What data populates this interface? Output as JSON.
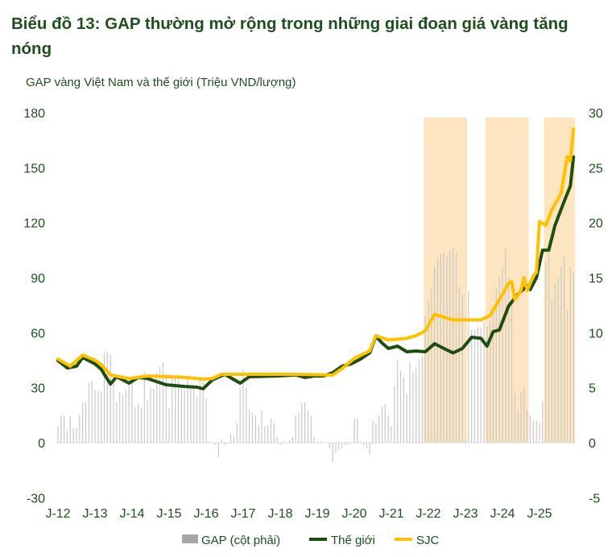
{
  "chart_data": {
    "type": "bar+line",
    "title": "Biểu đồ 13: GAP thường mở rộng trong những giai đoạn giá vàng tăng nóng",
    "ylabel": "GAP vàng Việt Nam và thế giới (Triệu VND/lượng)",
    "ylim_left": [
      -30,
      180
    ],
    "ylim_right": [
      -5,
      30
    ],
    "yticks_left": [
      "180",
      "150",
      "120",
      "90",
      "60",
      "30",
      "0",
      "-30"
    ],
    "yticks_right": [
      "30",
      "25",
      "20",
      "15",
      "10",
      "5",
      "0",
      "-5"
    ],
    "xticks": [
      "J-12",
      "J-13",
      "J-14",
      "J-15",
      "J-16",
      "J-17",
      "J-18",
      "J-19",
      "J-20",
      "J-21",
      "J-22",
      "J-23",
      "J-24",
      "J-25"
    ],
    "grid": false,
    "legend_position": "bottom",
    "highlight_periods": [
      [
        "2021-12",
        "2023-01"
      ],
      [
        "2023-08",
        "2024-09"
      ],
      [
        "2025-03",
        "2025-12"
      ]
    ],
    "colors": {
      "gap": "#c8c8c8",
      "world": "#1e4d10",
      "sjc": "#ffc000",
      "highlight": "#fde5bf",
      "text": "#1f4e1f"
    },
    "series": [
      {
        "name": "GAP (cột phải)",
        "axis": "right",
        "type": "bar",
        "start": "2012-01",
        "frequency": "monthly",
        "values": [
          1.5,
          2.5,
          2.4,
          1.1,
          2.4,
          1.3,
          1.4,
          2.6,
          3.6,
          3.7,
          5.4,
          5.6,
          4.8,
          4.7,
          4.6,
          8.3,
          8.3,
          8.0,
          5.8,
          3.7,
          4.6,
          4.4,
          4.8,
          5.8,
          5.6,
          3.2,
          3.5,
          3.2,
          6.4,
          3.8,
          5.0,
          4.9,
          6.4,
          6.9,
          7.3,
          6.2,
          3.2,
          6.0,
          6.1,
          6.1,
          4.9,
          4.8,
          5.9,
          5.2,
          4.9,
          4.2,
          5.7,
          5.6,
          4.0,
          0.1,
          0,
          -0.2,
          -1.3,
          0.3,
          -0.2,
          -0.1,
          0.8,
          0.6,
          1.8,
          5.0,
          6.6,
          5.0,
          3.0,
          2.7,
          2.5,
          1.6,
          2.9,
          1.5,
          1.6,
          2.2,
          1.8,
          0.5,
          -0.2,
          0.1,
          0,
          0.2,
          0.5,
          2.5,
          2.7,
          3.6,
          3.7,
          2.9,
          2.4,
          0.5,
          0.1,
          0.1,
          0,
          0,
          -0.5,
          -1.8,
          -1.0,
          -0.7,
          -0.5,
          -0.2,
          -0.2,
          0.1,
          2.2,
          2.2,
          0.1,
          -0.3,
          -0.5,
          -1.1,
          2.0,
          1.8,
          2.5,
          3.3,
          3.5,
          2.5,
          1.5,
          5.2,
          7.5,
          6.5,
          5.9,
          4.4,
          7.3,
          6.4,
          6.9,
          7.6,
          7.9,
          11.5,
          13,
          14,
          16,
          16.8,
          17.2,
          17.3,
          17,
          17.5,
          17.7,
          17.3,
          14.2,
          13.5,
          0.3,
          13.8,
          10.3,
          10.3,
          10.5,
          10.4,
          11,
          10.6,
          11,
          12,
          14,
          15,
          16,
          17.8,
          15,
          13,
          4.5,
          3,
          4.6,
          5,
          3,
          2.5,
          2,
          2,
          1.8,
          3.8,
          16.5,
          17.5,
          13,
          14.5,
          15,
          16,
          17,
          12,
          16,
          15.5
        ]
      },
      {
        "name": "Thế giới",
        "axis": "left",
        "type": "line",
        "x": [
          "2012-01",
          "2012-04",
          "2012-07",
          "2012-09",
          "2013-01",
          "2013-03",
          "2013-06",
          "2013-08",
          "2013-12",
          "2014-03",
          "2014-06",
          "2014-12",
          "2015-06",
          "2015-10",
          "2015-12",
          "2016-03",
          "2016-07",
          "2016-12",
          "2017-03",
          "2017-12",
          "2018-06",
          "2018-09",
          "2018-12",
          "2019-03",
          "2019-06",
          "2019-09",
          "2019-12",
          "2020-03",
          "2020-06",
          "2020-08",
          "2020-10",
          "2020-12",
          "2021-03",
          "2021-06",
          "2021-09",
          "2021-12",
          "2022-03",
          "2022-06",
          "2022-09",
          "2022-12",
          "2023-03",
          "2023-06",
          "2023-08",
          "2023-10",
          "2023-12",
          "2024-03",
          "2024-06",
          "2024-09",
          "2024-10",
          "2024-12",
          "2025-02",
          "2025-04",
          "2025-06",
          "2025-09",
          "2025-11",
          "2025-12"
        ],
        "values": [
          44.8,
          40.8,
          41.7,
          46.5,
          43,
          40,
          32,
          36,
          32.5,
          35.6,
          35,
          31.6,
          30.7,
          30.3,
          29.4,
          34.2,
          37.3,
          32.5,
          36,
          36.4,
          37,
          35.6,
          36.4,
          36.4,
          38.2,
          41.7,
          43,
          45.6,
          49,
          58,
          54.4,
          51.4,
          52.7,
          49.6,
          50,
          49.6,
          54,
          51.4,
          49,
          51.4,
          57.5,
          57,
          52.7,
          60.6,
          61.5,
          74.6,
          81,
          85.6,
          83.5,
          90,
          105,
          105,
          118.5,
          131.7,
          140,
          155.8
        ]
      },
      {
        "name": "SJC",
        "axis": "left",
        "type": "line",
        "x": [
          "2012-01",
          "2012-05",
          "2012-09",
          "2013-01",
          "2013-03",
          "2013-06",
          "2013-12",
          "2014-06",
          "2015-01",
          "2015-06",
          "2015-12",
          "2016-03",
          "2016-06",
          "2017-06",
          "2018-06",
          "2019-06",
          "2019-09",
          "2020-01",
          "2020-06",
          "2020-08",
          "2020-12",
          "2021-06",
          "2021-09",
          "2021-12",
          "2022-03",
          "2022-09",
          "2022-12",
          "2023-06",
          "2023-09",
          "2023-12",
          "2024-03",
          "2024-04",
          "2024-05",
          "2024-07",
          "2024-08",
          "2024-09",
          "2024-11",
          "2024-12",
          "2025-01",
          "2025-03",
          "2025-05",
          "2025-08",
          "2025-10",
          "2025-11",
          "2025-12"
        ],
        "values": [
          45.6,
          41.7,
          47.8,
          45,
          42.6,
          36.9,
          35,
          36.4,
          36,
          35.6,
          34.7,
          35,
          37.3,
          37.3,
          37.3,
          36.9,
          40.4,
          46,
          50,
          58.4,
          56,
          57,
          58.4,
          61,
          70,
          67,
          67,
          67,
          69.4,
          78,
          87,
          87.8,
          78,
          83,
          90,
          83,
          91,
          93,
          120.7,
          118.5,
          127,
          136,
          156,
          153.7,
          171
        ]
      }
    ]
  },
  "legend": {
    "gap": "GAP (cột phải)",
    "world": "Thế giới",
    "sjc": "SJC"
  }
}
